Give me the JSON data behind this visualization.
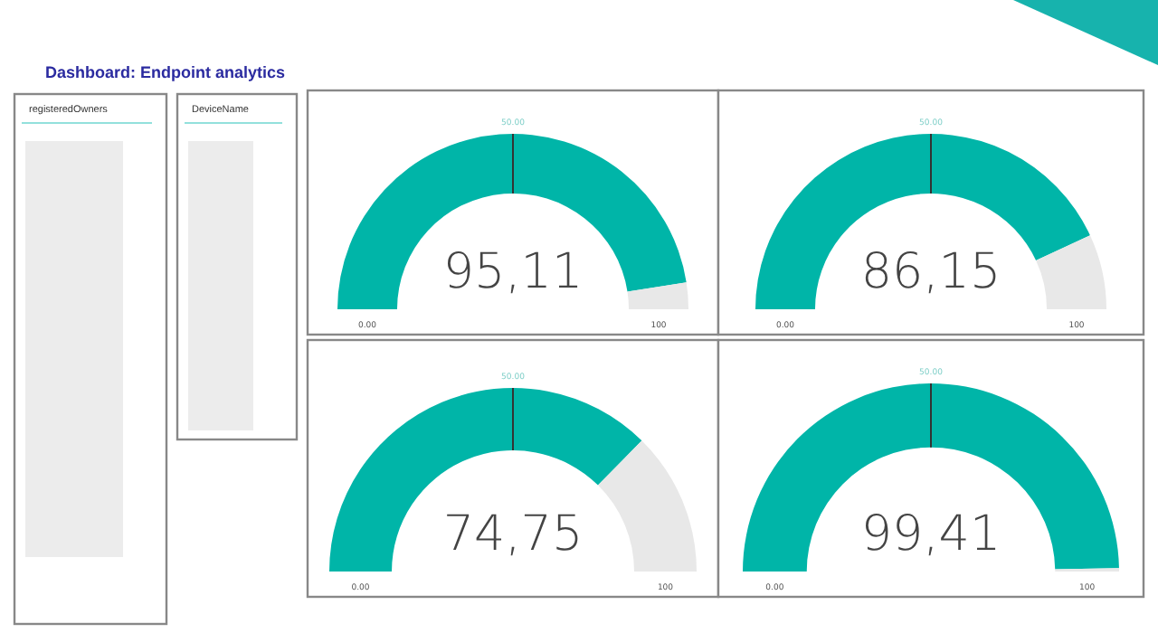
{
  "chart_data": [
    {
      "type": "other",
      "title": "Dashboard: Endpoint analytics"
    },
    {
      "type": "other",
      "title": "registeredOwners"
    },
    {
      "type": "other",
      "title": "DeviceName"
    },
    {
      "type": "donut",
      "categories": [
        null,
        null
      ],
      "values": [
        95.11,
        4.89
      ],
      "colors": [
        "#00b5a8",
        "#e8e8e8"
      ],
      "value_labels": [
        "95,11",
        null
      ],
      "annotations": [
        "0.00",
        "50.00",
        "100"
      ]
    },
    {
      "type": "donut",
      "categories": [
        null,
        null
      ],
      "values": [
        86.15,
        13.85
      ],
      "colors": [
        "#00b5a8",
        "#e8e8e8"
      ],
      "value_labels": [
        "86,15",
        null
      ],
      "annotations": [
        "0.00",
        "50.00",
        "100"
      ]
    },
    {
      "type": "donut",
      "categories": [
        null,
        null
      ],
      "values": [
        74.75,
        25.25
      ],
      "colors": [
        "#00b5a8",
        "#e8e8e8"
      ],
      "value_labels": [
        "74,75",
        null
      ],
      "annotations": [
        "0.00",
        "50.00",
        "100"
      ]
    },
    {
      "type": "donut",
      "categories": [
        null,
        null
      ],
      "values": [
        99.41,
        0.59
      ],
      "colors": [
        "#00b5a8",
        "#e8e8e8"
      ],
      "value_labels": [
        "99,41",
        null
      ],
      "annotations": [
        "0.00",
        "50.00",
        "100"
      ]
    }
  ]
}
